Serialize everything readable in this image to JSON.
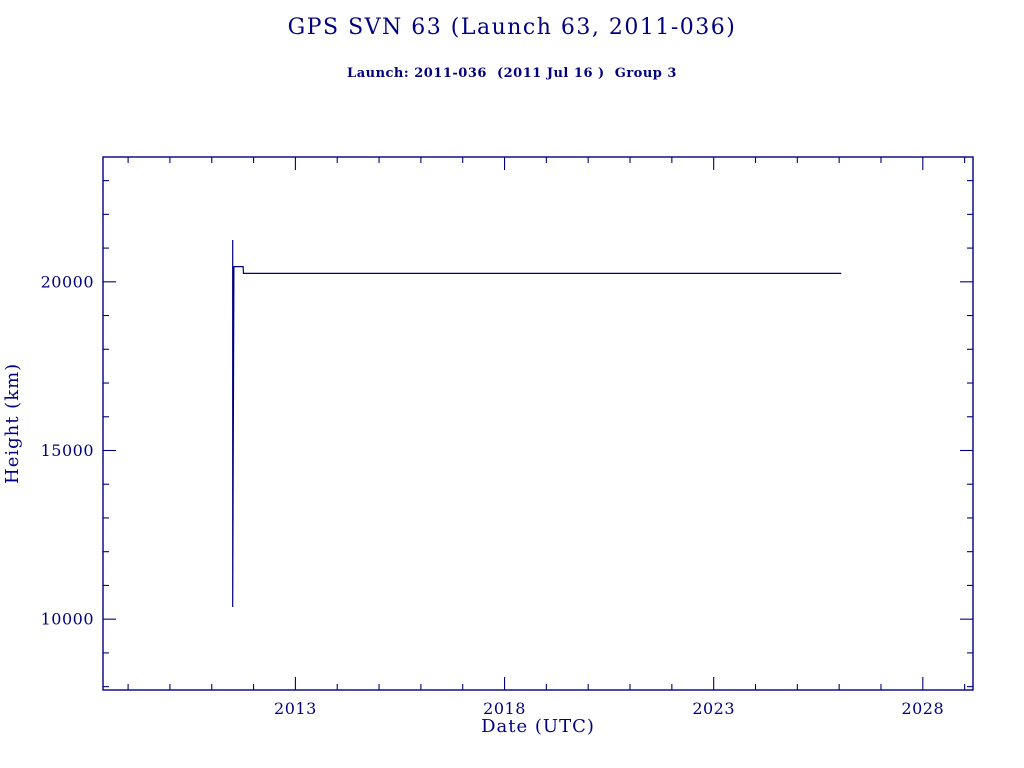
{
  "page": {
    "background_color": "#ffffff",
    "accent_color": "#000080"
  },
  "chart_data": {
    "type": "line",
    "title": "GPS SVN 63 (Launch 63, 2011-036)",
    "subtitle": "Launch: 2011-036  (2011 Jul 16 )  Group 3",
    "xlabel": "Date (UTC)",
    "ylabel": "Height (km)",
    "xlim": [
      2008.4,
      2029.2
    ],
    "ylim": [
      7900,
      23700
    ],
    "x_major_ticks": [
      2013,
      2018,
      2023,
      2028
    ],
    "x_minor_step": 1,
    "y_major_ticks": [
      10000,
      15000,
      20000
    ],
    "y_minor_step": 1000,
    "grid": false,
    "legend": false,
    "line_color": "#000080",
    "series": [
      {
        "name": "height-km",
        "points": [
          [
            2011.5,
            21240
          ],
          [
            2011.5,
            10360
          ],
          [
            2011.53,
            20450
          ],
          [
            2011.75,
            20450
          ],
          [
            2011.76,
            20250
          ],
          [
            2026.05,
            20250
          ]
        ]
      }
    ]
  }
}
